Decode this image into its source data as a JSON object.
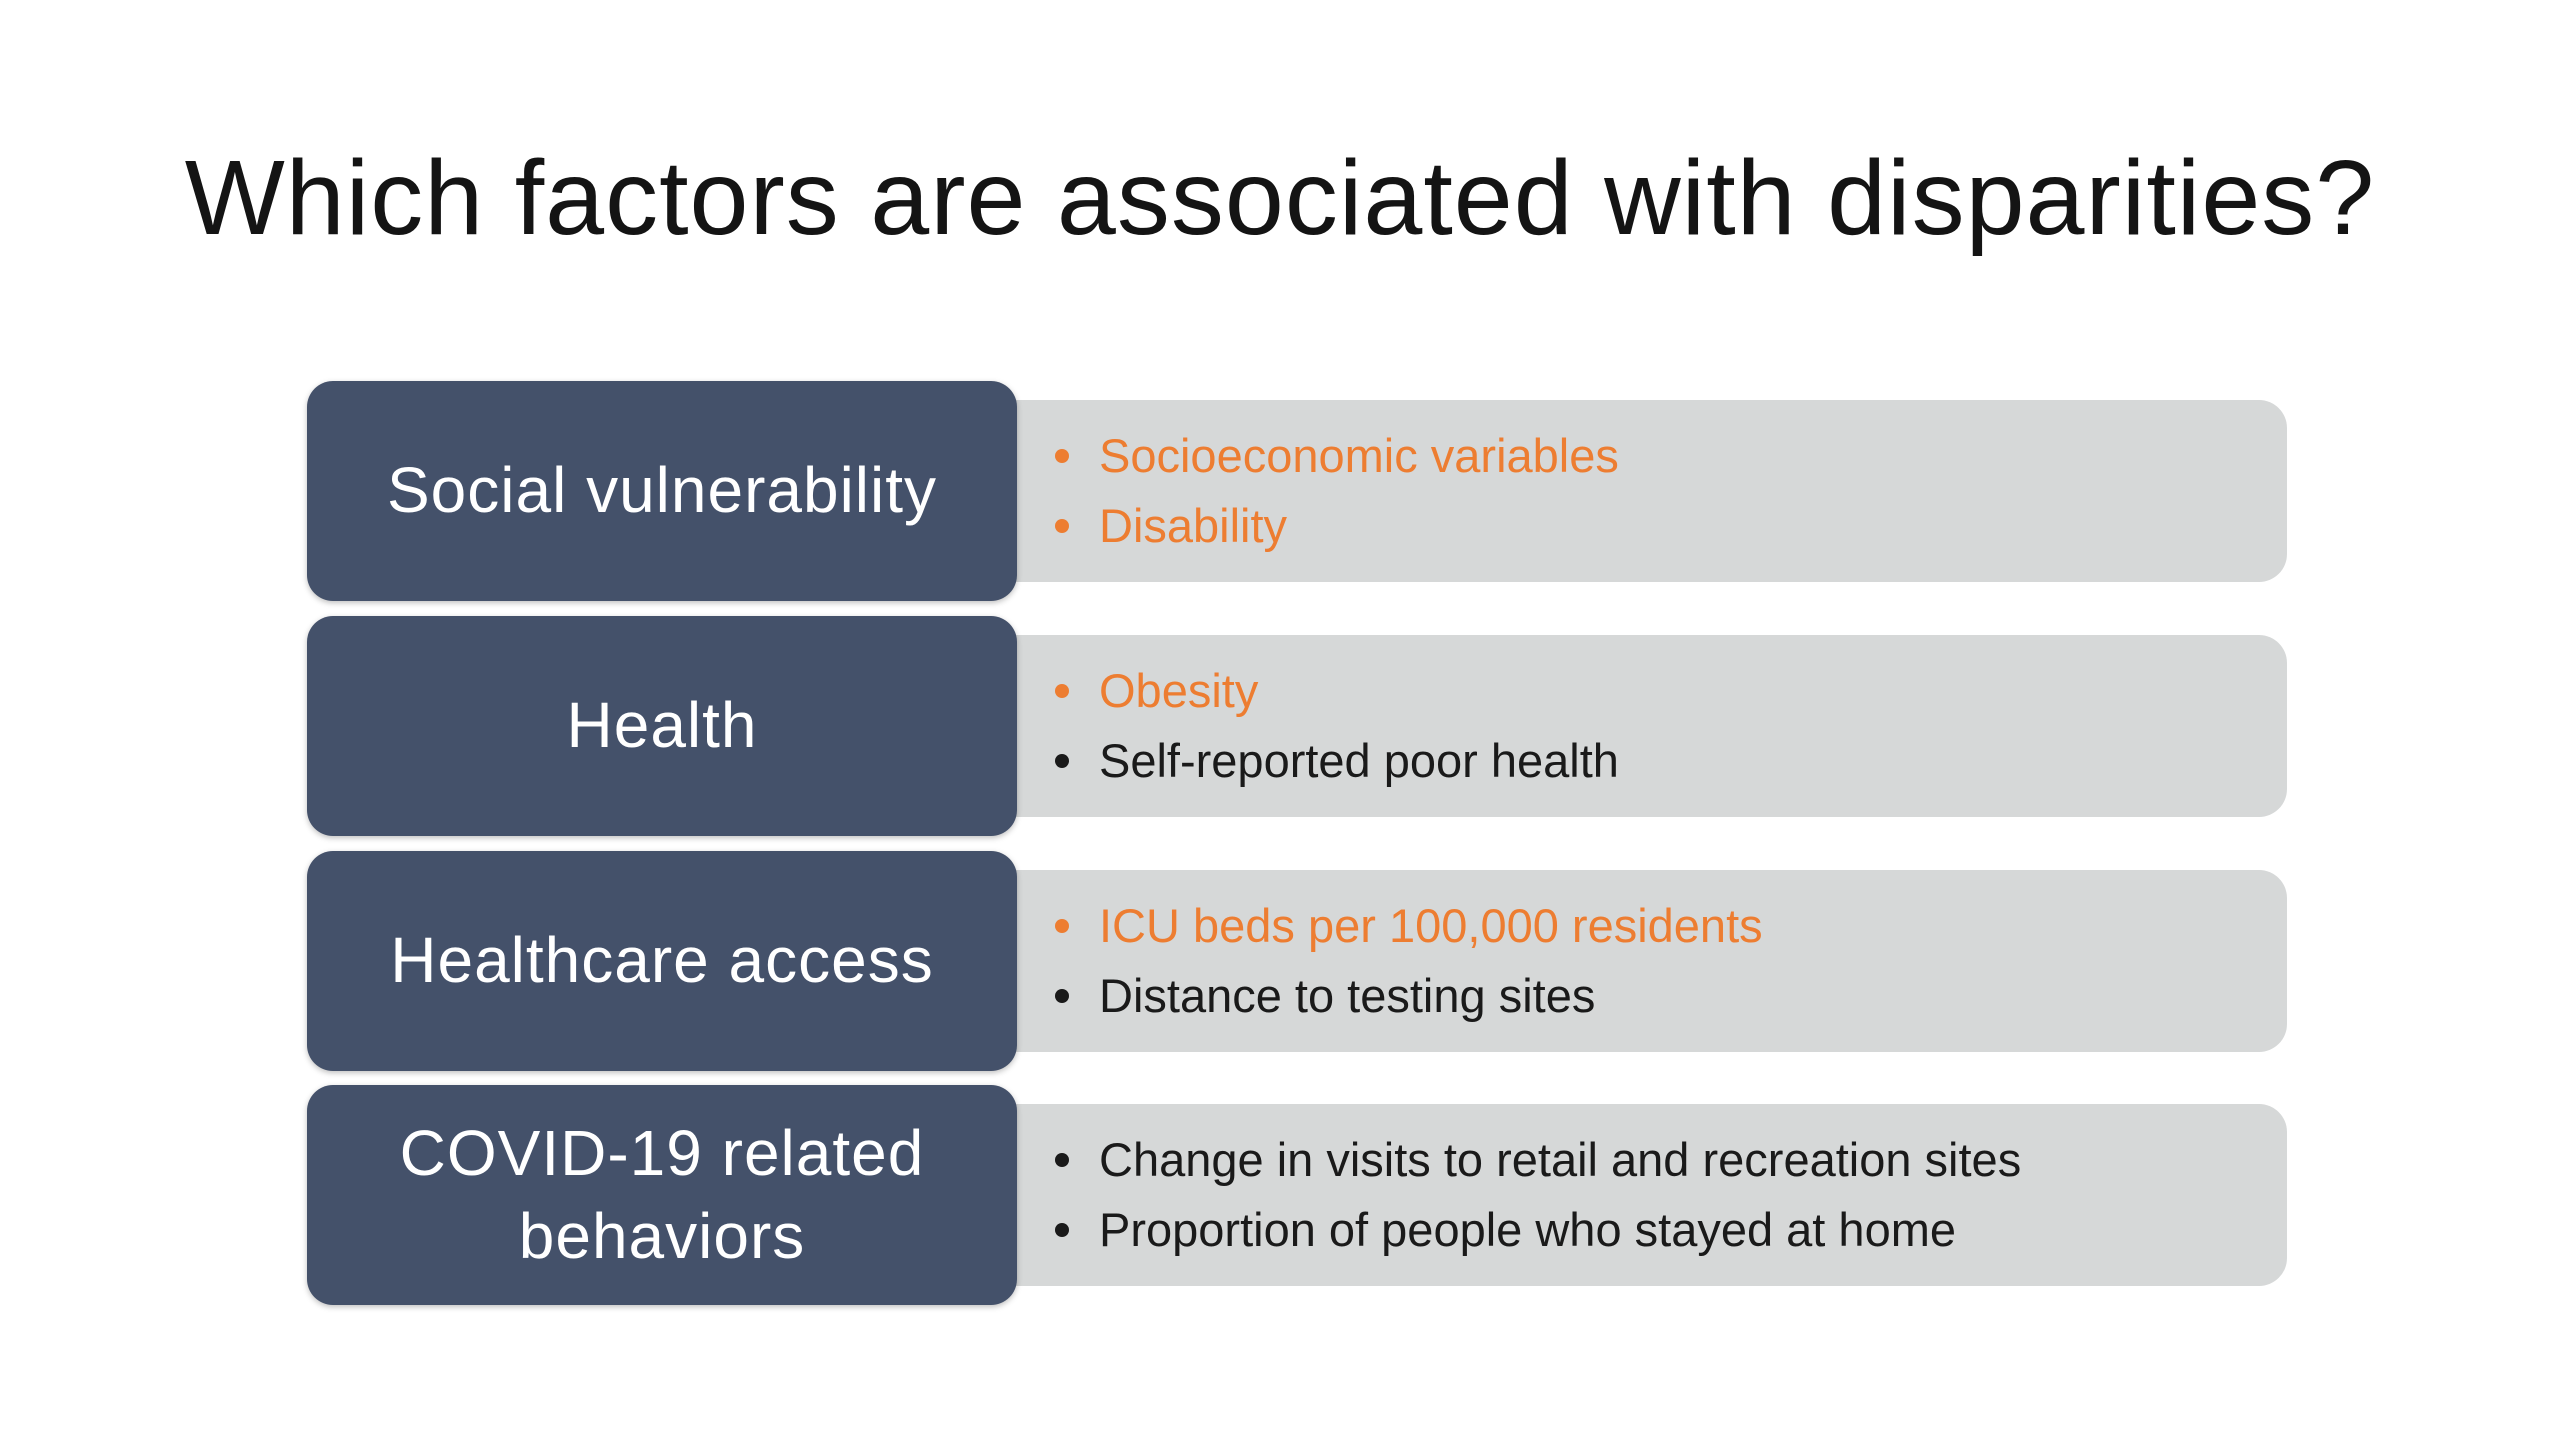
{
  "slide": {
    "title": "Which factors are associated with disparities?"
  },
  "colors": {
    "category_box": "#44516a",
    "detail_box": "#d6d8d8",
    "highlight_text": "#ed7d31",
    "normal_text": "#1a1a1a"
  },
  "rows": [
    {
      "category": "Social vulnerability",
      "items": [
        {
          "text": "Socioeconomic variables",
          "highlight": true
        },
        {
          "text": "Disability",
          "highlight": true
        }
      ]
    },
    {
      "category": "Health",
      "items": [
        {
          "text": "Obesity",
          "highlight": true
        },
        {
          "text": "Self-reported poor health",
          "highlight": false
        }
      ]
    },
    {
      "category": "Healthcare access",
      "items": [
        {
          "text": "ICU beds per 100,000 residents",
          "highlight": true
        },
        {
          "text": "Distance to testing sites",
          "highlight": false
        }
      ]
    },
    {
      "category": "COVID-19 related behaviors",
      "items": [
        {
          "text": "Change in visits to retail and recreation sites",
          "highlight": false
        },
        {
          "text": "Proportion of people who stayed at home",
          "highlight": false
        }
      ]
    }
  ]
}
